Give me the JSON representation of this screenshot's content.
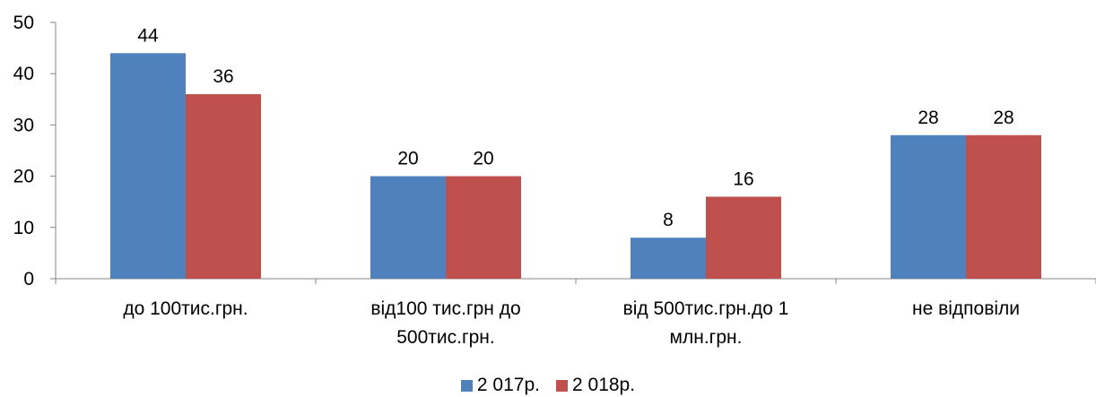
{
  "chart_data": {
    "type": "bar",
    "categories": [
      [
        "до 100тис.грн."
      ],
      [
        "від100 тис.грн до",
        "500тис.грн."
      ],
      [
        "від 500тис.грн.до 1",
        "млн.грн."
      ],
      [
        "не відповіли"
      ]
    ],
    "series": [
      {
        "name": "2 017р.",
        "values": [
          44,
          20,
          8,
          28
        ],
        "color": "#4f81bd"
      },
      {
        "name": "2 018р.",
        "values": [
          36,
          20,
          16,
          28
        ],
        "color": "#c0504d"
      }
    ],
    "yticks": [
      "0",
      "10",
      "20",
      "30",
      "40",
      "50"
    ],
    "ylim": [
      0,
      50
    ],
    "grid": false,
    "legend_position": "bottom"
  }
}
